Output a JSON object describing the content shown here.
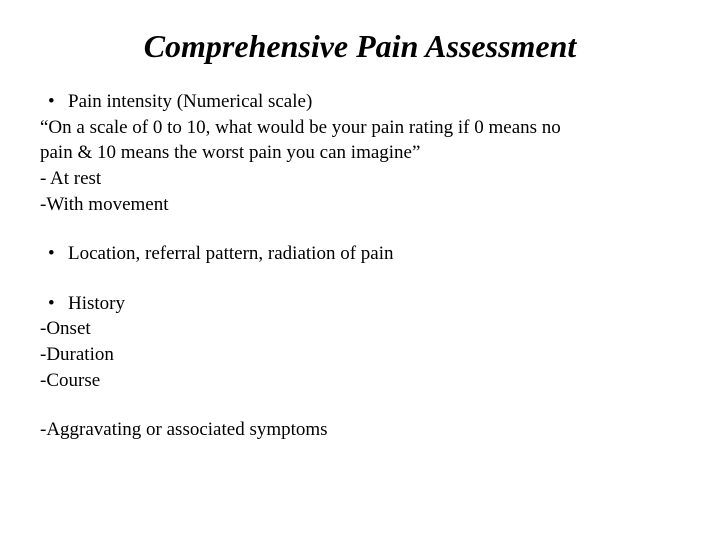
{
  "title": "Comprehensive Pain Assessment",
  "section1": {
    "bullet": "Pain intensity (Numerical scale)",
    "quote_line1": "“On a scale of 0 to 10, what would be your pain rating if 0 means no",
    "quote_line2": "pain &  10 means the worst pain you can imagine”",
    "item1": "- At rest",
    "item2": "-With movement"
  },
  "section2": {
    "bullet": "Location, referral pattern, radiation of pain"
  },
  "section3": {
    "bullet": "History",
    "item1": "-Onset",
    "item2": "-Duration",
    "item3": "-Course"
  },
  "section4": {
    "line": "-Aggravating or associated symptoms"
  },
  "styles": {
    "background_color": "#ffffff",
    "text_color": "#000000",
    "title_fontsize": 32,
    "title_style": "bold italic",
    "body_fontsize": 19,
    "font_family": "Times New Roman"
  }
}
